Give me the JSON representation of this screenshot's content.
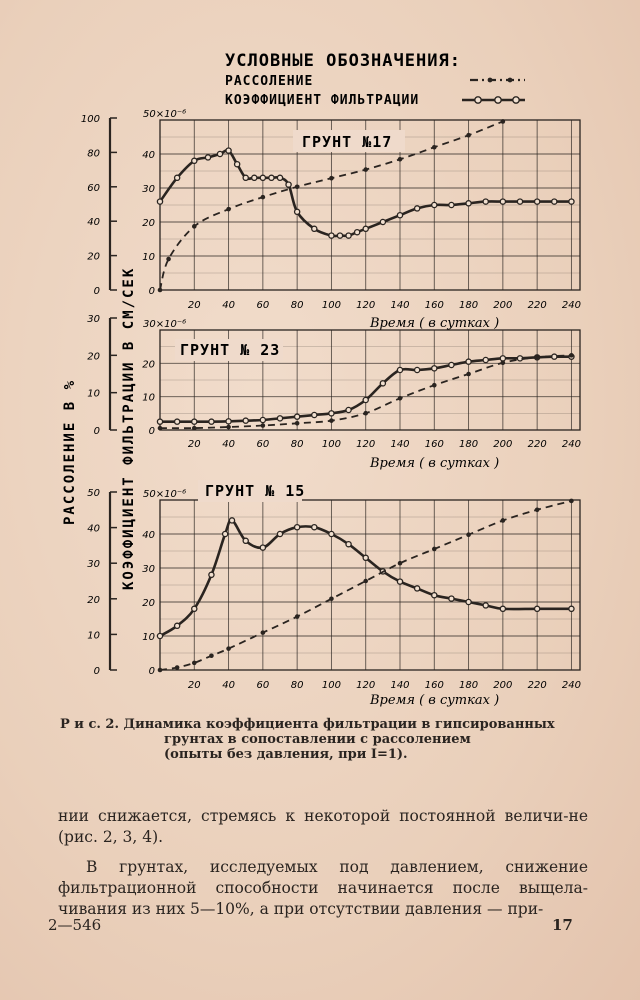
{
  "legend": {
    "title": "УСЛОВНЫЕ ОБОЗНАЧЕНИЯ:",
    "salinity_label": "РАССОЛЕНИЕ",
    "filtration_label": "КОЭФФИЦИЕНТ ФИЛЬТРАЦИИ"
  },
  "axes": {
    "left_ylabel": "РАССОЛЕНИЕ В %",
    "mid_ylabel": "КОЭФФИЦИЕНТ ФИЛЬТРАЦИИ В СМ/СЕК",
    "xlabel": "Время ( в сутках )",
    "x_ticks": [
      "20",
      "40",
      "60",
      "80",
      "100",
      "120",
      "140",
      "160",
      "180",
      "200",
      "220",
      "240"
    ]
  },
  "caption": {
    "prefix": "Р и с. 2.",
    "line1": "Динамика коэффициента фильтрации в гипсированных",
    "line2": "грунтах в сопоставлении с рассолением",
    "line3": "(опыты без давления, при I=1)."
  },
  "body": {
    "p1": "нии снижается, стремясь к некоторой постоянной величи-не (рис. 2, 3, 4).",
    "p2": "В грунтах, исследуемых под давлением, снижение фильтрационной способности начинается после выщела-чивания из них 5—10%, а при отсутствии давления — при-"
  },
  "footer": {
    "left": "2—546",
    "right": "17"
  },
  "chart_data": [
    {
      "type": "line",
      "title": "ГРУНТ №17",
      "xlabel": "Время ( в сутках )",
      "xlim": [
        0,
        245
      ],
      "k_label": "50×10⁻⁶",
      "k_ylim": [
        0,
        50
      ],
      "k_ticks": [
        "0",
        "10",
        "20",
        "30",
        "40"
      ],
      "salinity_ylim": [
        0,
        100
      ],
      "salinity_ticks": [
        "0",
        "20",
        "40",
        "60",
        "80",
        "100"
      ],
      "series": [
        {
          "name": "КОЭФФИЦИЕНТ ФИЛЬТРАЦИИ",
          "axis": "k",
          "x": [
            0,
            10,
            20,
            28,
            35,
            40,
            45,
            50,
            55,
            60,
            65,
            70,
            75,
            80,
            90,
            100,
            105,
            110,
            115,
            120,
            130,
            140,
            150,
            160,
            170,
            180,
            190,
            200,
            210,
            220,
            230,
            240
          ],
          "y": [
            26,
            33,
            38,
            39,
            40,
            41,
            37,
            33,
            33,
            33,
            33,
            33,
            31,
            23,
            18,
            16,
            16,
            16,
            17,
            18,
            20,
            22,
            24,
            25,
            25,
            25.5,
            26,
            26,
            26,
            26,
            26,
            26
          ]
        },
        {
          "name": "РАССОЛЕНИЕ",
          "axis": "salinity",
          "x": [
            0,
            5,
            20,
            40,
            60,
            80,
            100,
            120,
            140,
            160,
            180,
            200
          ],
          "y": [
            0,
            18,
            37,
            47,
            54,
            60,
            65,
            70,
            76,
            83,
            90,
            98
          ]
        }
      ]
    },
    {
      "type": "line",
      "title": "ГРУНТ № 23",
      "xlabel": "Время ( в сутках )",
      "xlim": [
        0,
        245
      ],
      "k_label": "30×10⁻⁶",
      "k_ylim": [
        0,
        30
      ],
      "k_ticks": [
        "0",
        "10",
        "20"
      ],
      "salinity_ylim": [
        0,
        30
      ],
      "salinity_ticks": [
        "0",
        "10",
        "20",
        "30"
      ],
      "series": [
        {
          "name": "КОЭФФИЦИЕНТ ФИЛЬТРАЦИИ",
          "axis": "k",
          "x": [
            0,
            10,
            20,
            30,
            40,
            50,
            60,
            70,
            80,
            90,
            100,
            110,
            120,
            130,
            140,
            150,
            160,
            170,
            180,
            190,
            200,
            210,
            220,
            230,
            240
          ],
          "y": [
            2.5,
            2.5,
            2.5,
            2.5,
            2.6,
            2.8,
            3,
            3.5,
            4,
            4.5,
            5,
            6,
            9,
            14,
            18,
            18,
            18.5,
            19.5,
            20.5,
            21,
            21.5,
            21.5,
            21.8,
            22,
            22
          ]
        },
        {
          "name": "РАССОЛЕНИЕ",
          "axis": "salinity",
          "x": [
            0,
            20,
            40,
            60,
            80,
            100,
            120,
            140,
            160,
            180,
            200,
            220,
            240
          ],
          "y": [
            0.5,
            0.5,
            0.8,
            1.2,
            1.8,
            2.5,
            4.5,
            8.5,
            12,
            15,
            18,
            19.5,
            20
          ]
        }
      ]
    },
    {
      "type": "line",
      "title": "ГРУНТ № 15",
      "xlabel": "Время ( в сутках )",
      "xlim": [
        0,
        245
      ],
      "k_label": "50×10⁻⁶",
      "k_ylim": [
        0,
        50
      ],
      "k_ticks": [
        "0",
        "10",
        "20",
        "30",
        "40"
      ],
      "salinity_ylim": [
        0,
        50
      ],
      "salinity_ticks": [
        "0",
        "10",
        "20",
        "30",
        "40",
        "50"
      ],
      "series": [
        {
          "name": "КОЭФФИЦИЕНТ ФИЛЬТРАЦИИ",
          "axis": "k",
          "x": [
            0,
            10,
            20,
            30,
            38,
            42,
            50,
            60,
            70,
            80,
            90,
            100,
            110,
            120,
            130,
            140,
            150,
            160,
            170,
            180,
            190,
            200,
            220,
            240
          ],
          "y": [
            10,
            13,
            18,
            28,
            40,
            44,
            38,
            36,
            40,
            42,
            42,
            40,
            37,
            33,
            29,
            26,
            24,
            22,
            21,
            20,
            19,
            18,
            18,
            18
          ]
        },
        {
          "name": "РАССОЛЕНИЕ",
          "axis": "salinity",
          "x": [
            0,
            10,
            20,
            30,
            40,
            60,
            80,
            100,
            120,
            140,
            160,
            180,
            200,
            220,
            240
          ],
          "y": [
            0,
            0.7,
            2,
            4,
            6,
            10.5,
            15,
            20,
            25,
            30,
            34,
            38,
            42,
            45,
            47.5
          ]
        }
      ]
    }
  ]
}
